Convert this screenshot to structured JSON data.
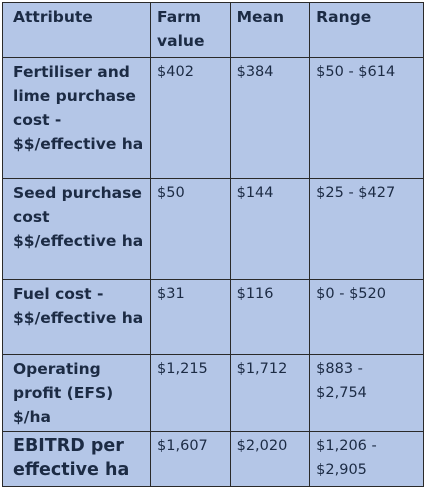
{
  "table": {
    "headers": [
      "Attribute",
      "Farm value",
      "Mean",
      "Range"
    ],
    "rows": [
      {
        "attribute": "Fertiliser and lime purchase cost - $$/effective ha",
        "farm_value": "$402",
        "mean": "$384",
        "range": "$50 - $614"
      },
      {
        "attribute": "Seed purchase cost $$/effective ha",
        "farm_value": "$50",
        "mean": "$144",
        "range": "$25 - $427"
      },
      {
        "attribute": "Fuel cost - $$/effective ha",
        "farm_value": "$31",
        "mean": "$116",
        "range": "$0 - $520"
      },
      {
        "attribute": "Operating profit (EFS) $/ha",
        "farm_value": "$1,215",
        "mean": "$1,712",
        "range": "$883 - $2,754"
      },
      {
        "attribute": "EBITRD per effective ha",
        "farm_value": "$1,607",
        "mean": "$2,020",
        "range": "$1,206 - $2,905"
      }
    ]
  },
  "colors": {
    "cell_background": "#b4c6e7",
    "text": "#1c2b44",
    "border": "#2a2a2a"
  }
}
